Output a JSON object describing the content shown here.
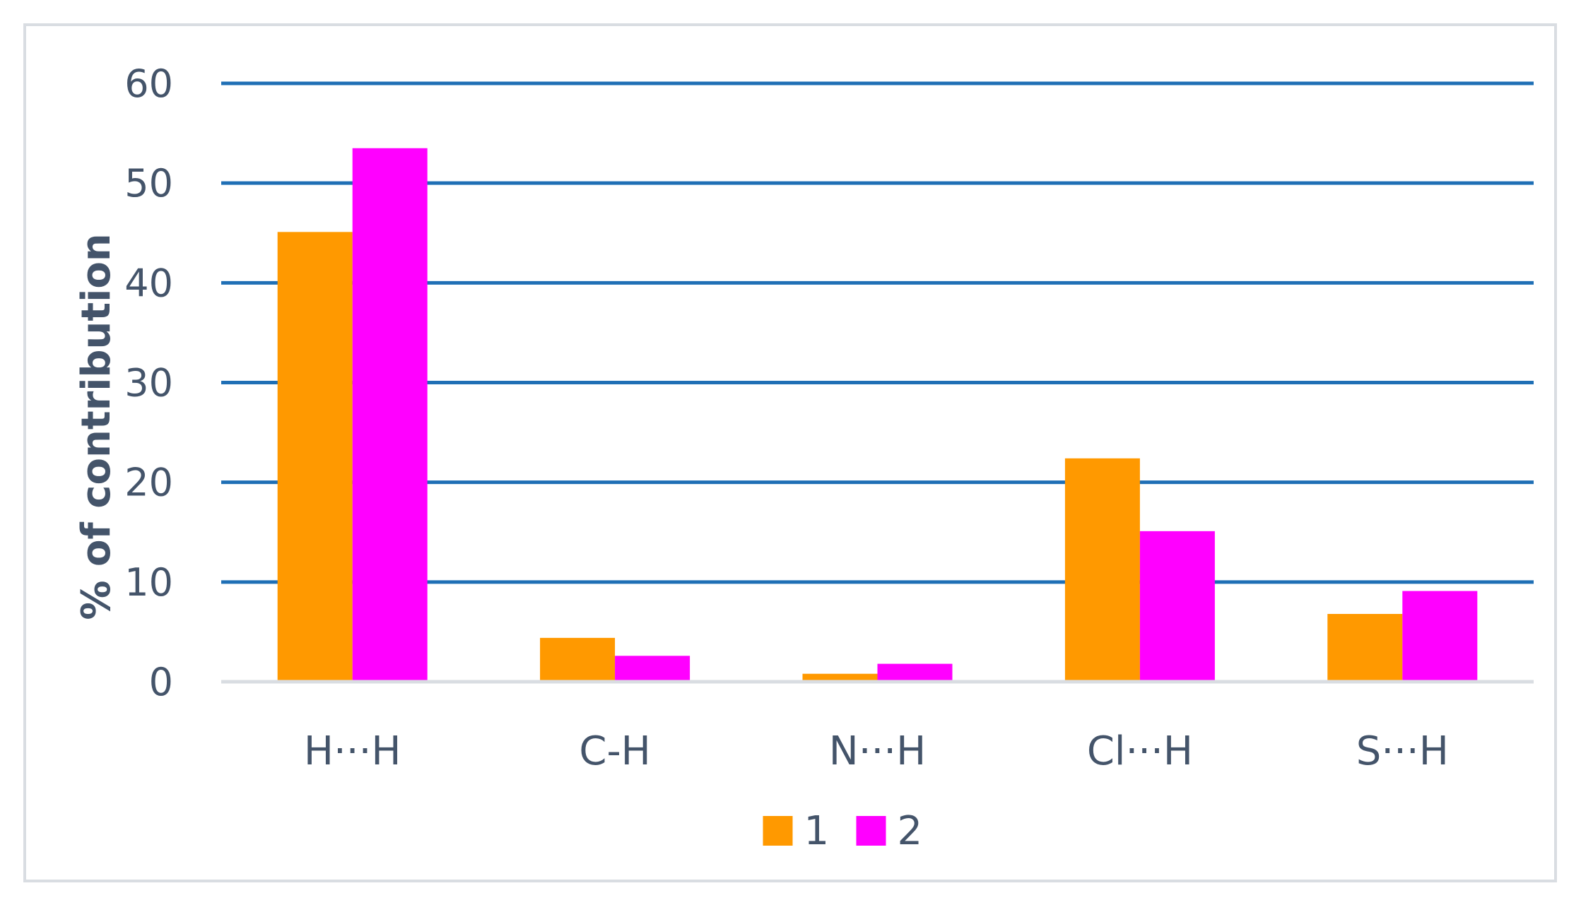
{
  "chart_data": {
    "type": "bar",
    "title": "",
    "xlabel": "",
    "ylabel": "% of contribution",
    "categories": [
      "H···H",
      "C-H",
      "N···H",
      "Cl···H",
      "S···H"
    ],
    "series": [
      {
        "name": "1",
        "color": "#ff9900",
        "values": [
          45.1,
          4.4,
          0.8,
          22.4,
          6.8
        ]
      },
      {
        "name": "2",
        "color": "#ff00ff",
        "values": [
          53.5,
          2.6,
          1.8,
          15.1,
          9.1
        ]
      }
    ],
    "ylim": [
      0,
      60
    ],
    "yticks": [
      0,
      10,
      20,
      30,
      40,
      50,
      60
    ],
    "grid": true,
    "gridline_color": "#1f6fb5",
    "legend_position": "bottom"
  }
}
